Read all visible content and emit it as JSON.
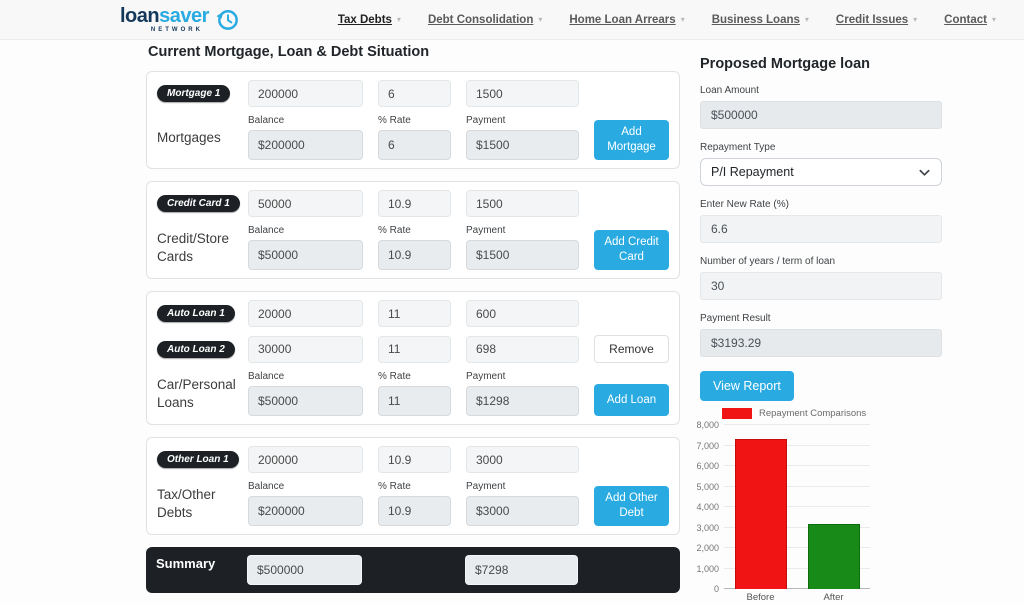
{
  "header": {
    "logo": {
      "part1": "loan",
      "part2": "saver",
      "sub": "NETWORK"
    },
    "nav": [
      {
        "label": "Tax Debts"
      },
      {
        "label": "Debt Consolidation"
      },
      {
        "label": "Home Loan Arrears"
      },
      {
        "label": "Business Loans"
      },
      {
        "label": "Credit Issues"
      },
      {
        "label": "Contact"
      }
    ]
  },
  "left": {
    "title": "Current Mortgage, Loan & Debt Situation",
    "col_labels": {
      "balance": "Balance",
      "rate": "% Rate",
      "payment": "Payment"
    },
    "sections": [
      {
        "name": "Mortgages",
        "loans": [
          {
            "badge": "Mortgage 1",
            "balance": "200000",
            "rate": "6",
            "payment": "1500"
          }
        ],
        "totals": {
          "balance": "$200000",
          "rate": "6",
          "payment": "$1500"
        },
        "add_label": "Add Mortgage"
      },
      {
        "name": "Credit/Store Cards",
        "loans": [
          {
            "badge": "Credit Card 1",
            "balance": "50000",
            "rate": "10.9",
            "payment": "1500"
          }
        ],
        "totals": {
          "balance": "$50000",
          "rate": "10.9",
          "payment": "$1500"
        },
        "add_label": "Add Credit Card"
      },
      {
        "name": "Car/Personal Loans",
        "loans": [
          {
            "badge": "Auto Loan 1",
            "balance": "20000",
            "rate": "11",
            "payment": "600"
          },
          {
            "badge": "Auto Loan 2",
            "balance": "30000",
            "rate": "11",
            "payment": "698"
          }
        ],
        "totals": {
          "balance": "$50000",
          "rate": "11",
          "payment": "$1298"
        },
        "add_label": "Add Loan",
        "remove_label": "Remove"
      },
      {
        "name": "Tax/Other Debts",
        "loans": [
          {
            "badge": "Other Loan 1",
            "balance": "200000",
            "rate": "10.9",
            "payment": "3000"
          }
        ],
        "totals": {
          "balance": "$200000",
          "rate": "10.9",
          "payment": "$3000"
        },
        "add_label": "Add Other Debt"
      }
    ],
    "summary": {
      "label": "Summary",
      "total_balance": "$500000",
      "total_payment": "$7298"
    }
  },
  "right": {
    "title": "Proposed Mortgage loan",
    "loan_amount": {
      "label": "Loan Amount",
      "value": "$500000"
    },
    "repayment_type": {
      "label": "Repayment Type",
      "value": "P/I Repayment"
    },
    "new_rate": {
      "label": "Enter New Rate (%)",
      "value": "6.6"
    },
    "term": {
      "label": "Number of years / term of loan",
      "value": "30"
    },
    "payment_result": {
      "label": "Payment Result",
      "value": "$3193.29"
    },
    "view_report_label": "View Report"
  },
  "chart_data": {
    "type": "bar",
    "title": "Repayment Comparisons",
    "categories": [
      "Before",
      "After"
    ],
    "values": [
      7298,
      3193.29
    ],
    "colors": [
      "#f01414",
      "#188a18"
    ],
    "border_colors": [
      "#c40d0d",
      "#0e6b0e"
    ],
    "legend": "Repayment Comparisons",
    "legend_position": "top",
    "xlabel": "",
    "ylabel": "",
    "ylim": [
      0,
      8000
    ],
    "ytick_step": 1000,
    "grid": true
  },
  "colors": {
    "accent": "#29abe2",
    "dark": "#1d2125",
    "bar_red": "#f01414",
    "bar_green": "#188a18"
  }
}
